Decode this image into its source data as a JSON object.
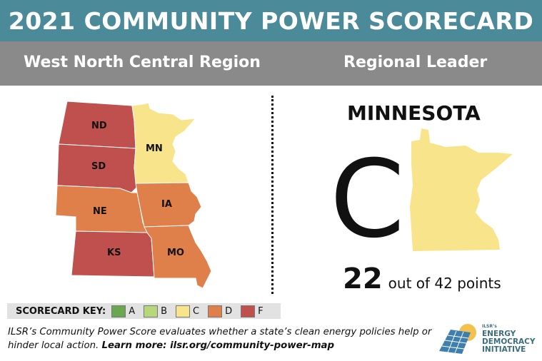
{
  "title": "2021 COMMUNITY POWER SCORECARD",
  "header": {
    "region": "West North Central Region",
    "leader_label": "Regional Leader"
  },
  "grade_colors": {
    "A": "#6aa84f",
    "B": "#b6d77a",
    "C": "#f8e48a",
    "D": "#df7f4a",
    "F": "#c0504d"
  },
  "map": {
    "states": [
      {
        "abbr": "ND",
        "grade": "F"
      },
      {
        "abbr": "SD",
        "grade": "F"
      },
      {
        "abbr": "MN",
        "grade": "C"
      },
      {
        "abbr": "NE",
        "grade": "D"
      },
      {
        "abbr": "IA",
        "grade": "D"
      },
      {
        "abbr": "KS",
        "grade": "F"
      },
      {
        "abbr": "MO",
        "grade": "D"
      }
    ]
  },
  "leader": {
    "name": "MINNESOTA",
    "grade": "C",
    "points": "22",
    "points_suffix": "out of 42 points"
  },
  "key": {
    "title": "SCORECARD KEY:",
    "items": [
      "A",
      "B",
      "C",
      "D",
      "F"
    ]
  },
  "footer": {
    "text": "ILSR’s Community Power Score evaluates whether a state’s clean energy policies help or hinder local action.",
    "learn_more": "Learn more: ilsr.org/community-power-map"
  },
  "logo": {
    "org": "ILSR’s",
    "line1": "ENERGY",
    "line2": "DEMOCRACY",
    "line3": "INITIATIVE"
  }
}
